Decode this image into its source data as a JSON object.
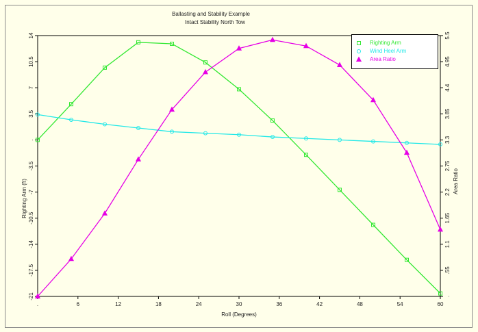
{
  "chart_data": {
    "type": "line",
    "title": "Ballasting and Stability Example",
    "subtitle": "Intact Stability North Tow",
    "x_label": "Roll (Degrees)",
    "y_label": "Righting Arm (ft)",
    "y2_label": "Area Ratio",
    "x": [
      0,
      5,
      10,
      15,
      20,
      25,
      30,
      35,
      40,
      45,
      50,
      55,
      60
    ],
    "series": [
      {
        "name": "Righting Arm",
        "color": "#33e833",
        "marker": "square",
        "values": [
          0,
          4.8,
          9.7,
          13.1,
          12.9,
          10.4,
          6.8,
          2.6,
          -2.0,
          -6.7,
          -11.4,
          -16.1,
          -20.6
        ]
      },
      {
        "name": "Wind Heel Arm",
        "color": "#22e8e8",
        "marker": "circle",
        "values": [
          3.4,
          2.7,
          2.1,
          1.6,
          1.1,
          0.9,
          0.7,
          0.4,
          0.2,
          0.0,
          -0.2,
          -0.4,
          -0.6
        ]
      },
      {
        "name": "Area Ratio",
        "color": "#e600e6",
        "marker": "triangle",
        "axis": "y2",
        "values": [
          0,
          0.79,
          1.75,
          2.89,
          3.94,
          4.73,
          5.23,
          5.41,
          5.28,
          4.88,
          4.14,
          3.03,
          1.41
        ]
      }
    ],
    "xlim": [
      0,
      60
    ],
    "xticks": [
      {
        "value": 0,
        "label": "."
      },
      6,
      12,
      18,
      24,
      30,
      36,
      42,
      48,
      54,
      60
    ],
    "ylim": [
      -21,
      14
    ],
    "yticks": [
      -21,
      -17.5,
      -14,
      -10.5,
      -7,
      -3.5,
      {
        "value": 0,
        "label": "."
      },
      3.5,
      7,
      10.5,
      14
    ],
    "y2lim": [
      0,
      5.5
    ],
    "y2ticks": [
      {
        "value": 0,
        "label": "."
      },
      {
        "value": 0.55,
        "label": ".55"
      },
      1.1,
      1.65,
      2.2,
      2.75,
      3.3,
      3.85,
      4.4,
      4.95,
      5.5
    ],
    "legend": "upper right"
  }
}
